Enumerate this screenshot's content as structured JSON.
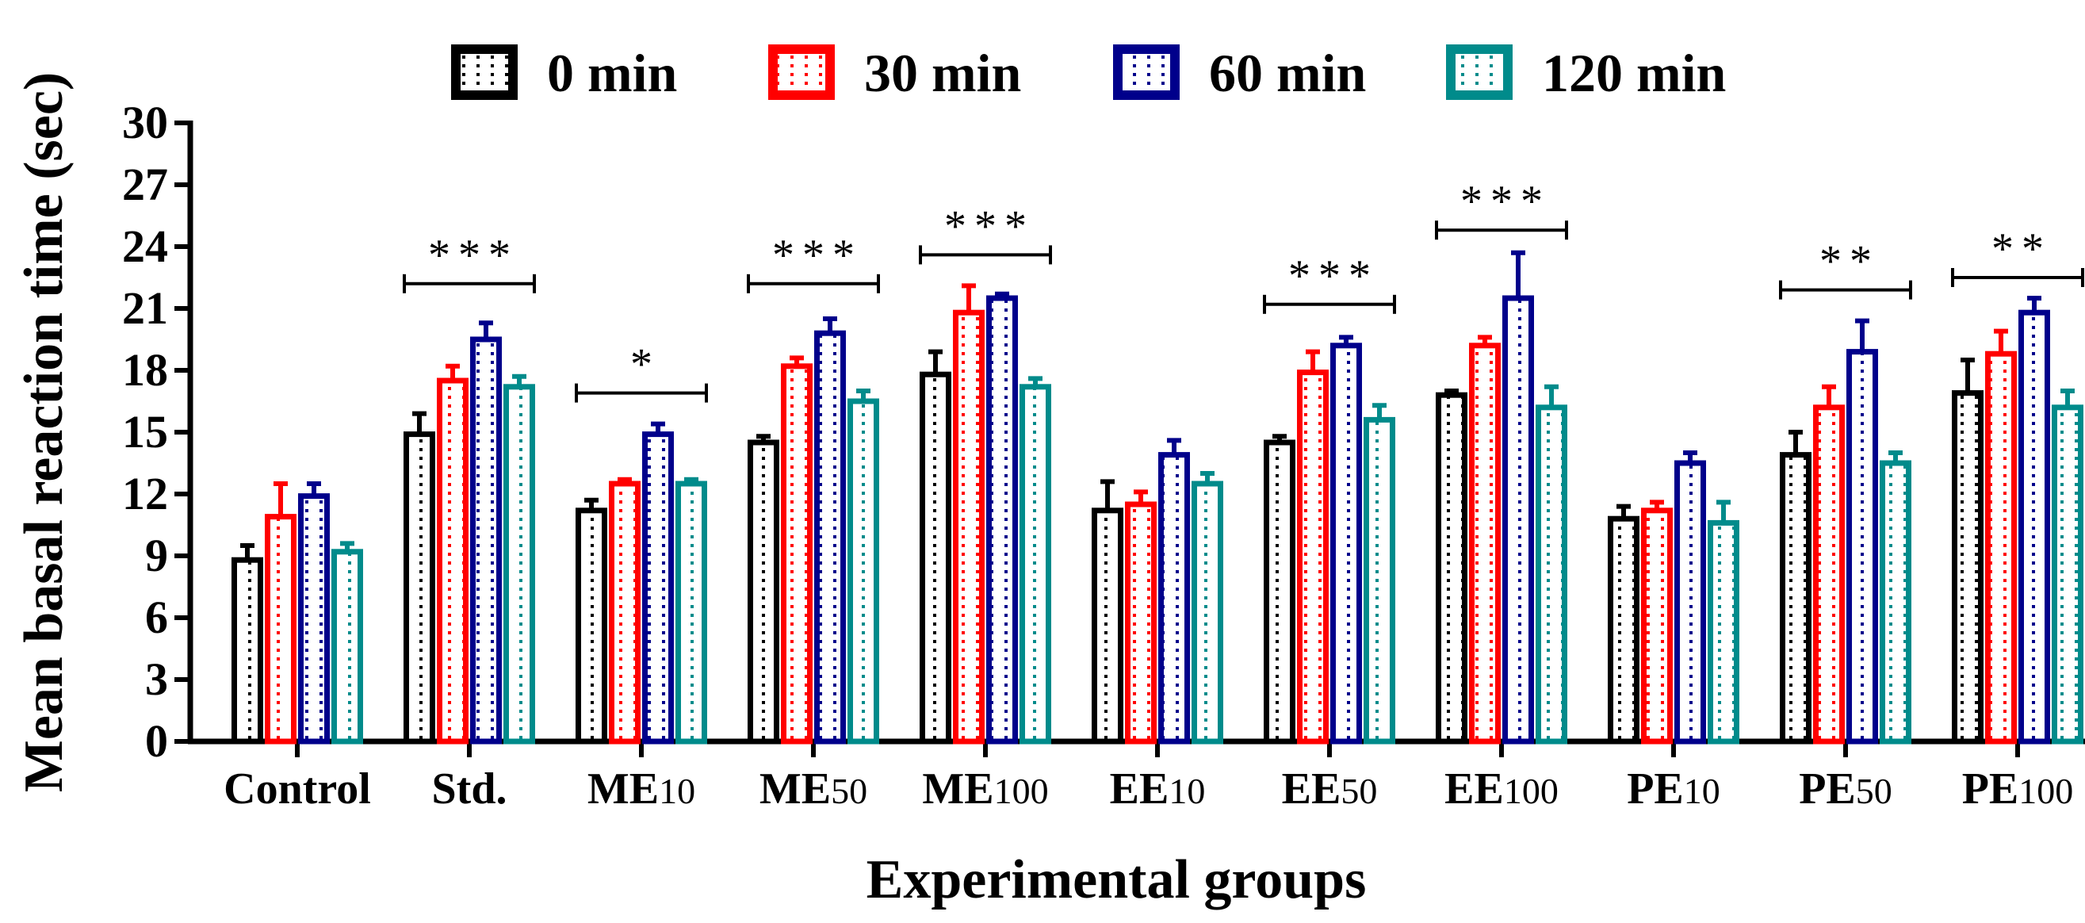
{
  "chart_data": {
    "type": "bar",
    "xlabel": "Experimental groups",
    "ylabel": "Mean basal reaction time (sec)",
    "ylim": [
      0,
      30
    ],
    "yticks": [
      "0",
      "3",
      "6",
      "9",
      "12",
      "15",
      "18",
      "21",
      "24",
      "27",
      "30"
    ],
    "categories": [
      {
        "main": "Control",
        "sub": ""
      },
      {
        "main": "Std.",
        "sub": ""
      },
      {
        "main": "ME",
        "sub": "10"
      },
      {
        "main": "ME",
        "sub": "50"
      },
      {
        "main": "ME",
        "sub": "100"
      },
      {
        "main": "EE",
        "sub": "10"
      },
      {
        "main": "EE",
        "sub": "50"
      },
      {
        "main": "EE",
        "sub": "100"
      },
      {
        "main": "PE",
        "sub": "10"
      },
      {
        "main": "PE",
        "sub": "50"
      },
      {
        "main": "PE",
        "sub": "100"
      }
    ],
    "series": [
      {
        "name": "0 min",
        "color": "#000000",
        "values": [
          8.8,
          14.9,
          11.2,
          14.5,
          17.8,
          11.2,
          14.5,
          16.8,
          10.8,
          13.9,
          16.9
        ],
        "errors": [
          0.7,
          1.0,
          0.5,
          0.3,
          1.1,
          1.4,
          0.3,
          0.2,
          0.6,
          1.1,
          1.6
        ]
      },
      {
        "name": "30 min",
        "color": "#ff0000",
        "values": [
          10.9,
          17.5,
          12.5,
          18.2,
          20.8,
          11.5,
          17.9,
          19.2,
          11.2,
          16.2,
          18.8
        ],
        "errors": [
          1.6,
          0.7,
          0.2,
          0.4,
          1.3,
          0.6,
          1.0,
          0.4,
          0.4,
          1.0,
          1.1
        ]
      },
      {
        "name": "60 min",
        "color": "#00008b",
        "values": [
          11.9,
          19.5,
          14.9,
          19.8,
          21.5,
          13.9,
          19.2,
          21.5,
          13.5,
          18.9,
          20.8
        ],
        "errors": [
          0.6,
          0.8,
          0.5,
          0.7,
          0.2,
          0.7,
          0.4,
          2.2,
          0.5,
          1.5,
          0.7
        ]
      },
      {
        "name": "120 min",
        "color": "#008b8b",
        "values": [
          9.2,
          17.2,
          12.5,
          16.5,
          17.2,
          12.5,
          15.6,
          16.2,
          10.6,
          13.5,
          16.2
        ],
        "errors": [
          0.4,
          0.5,
          0.2,
          0.5,
          0.4,
          0.5,
          0.7,
          1.0,
          1.0,
          0.5,
          0.8
        ]
      }
    ],
    "significance": [
      {
        "group_index": 1,
        "label": "***",
        "y": 22.2
      },
      {
        "group_index": 2,
        "label": "*",
        "y": 16.9
      },
      {
        "group_index": 3,
        "label": "***",
        "y": 22.2
      },
      {
        "group_index": 4,
        "label": "***",
        "y": 23.6
      },
      {
        "group_index": 6,
        "label": "***",
        "y": 21.2
      },
      {
        "group_index": 7,
        "label": "***",
        "y": 24.8
      },
      {
        "group_index": 9,
        "label": "**",
        "y": 21.9
      },
      {
        "group_index": 10,
        "label": "**",
        "y": 22.5
      }
    ],
    "legend_position": "top",
    "grid": false
  }
}
